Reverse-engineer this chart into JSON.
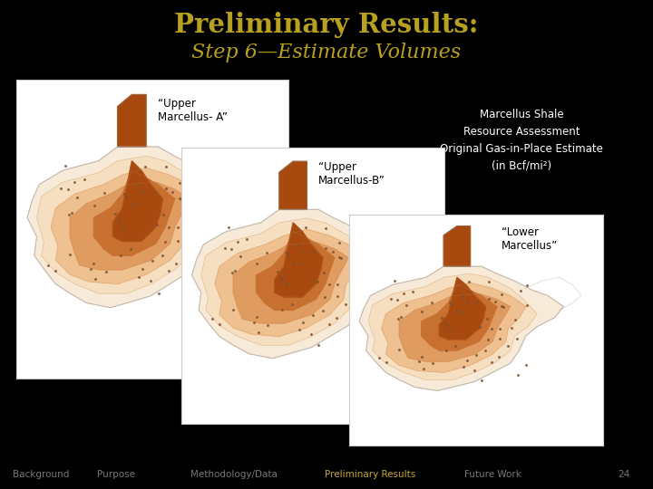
{
  "background_color": "#000000",
  "title_line1": "Preliminary Results:",
  "title_line2": "Step 6—Estimate Volumes",
  "title_color": "#B8A020",
  "map1_label": "“Upper\nMarcellus- A”",
  "map2_label": "“Upper\nMarcellus-B”",
  "map3_label": "“Lower\nMarcellus”",
  "side_label": "Marcellus Shale\nResource Assessment\nOriginal Gas-in-Place Estimate\n(in Bcf/mi²)",
  "side_label_color": "#FFFFFF",
  "nav_items": [
    "Background",
    "Purpose",
    "Methodology/Data",
    "Preliminary Results",
    "Future Work",
    "24"
  ],
  "nav_highlight": "Preliminary Results",
  "nav_color": "#777777",
  "nav_highlight_color": "#C8A830",
  "contour_colors": [
    "#F5DFC0",
    "#EFC090",
    "#E09C60",
    "#C87030",
    "#A84A10"
  ],
  "dot_color": "#7A5030",
  "map_border_color": "#CCCCCC",
  "panhandle_color": "#A84A10",
  "outline_color": "#AAAAAA"
}
